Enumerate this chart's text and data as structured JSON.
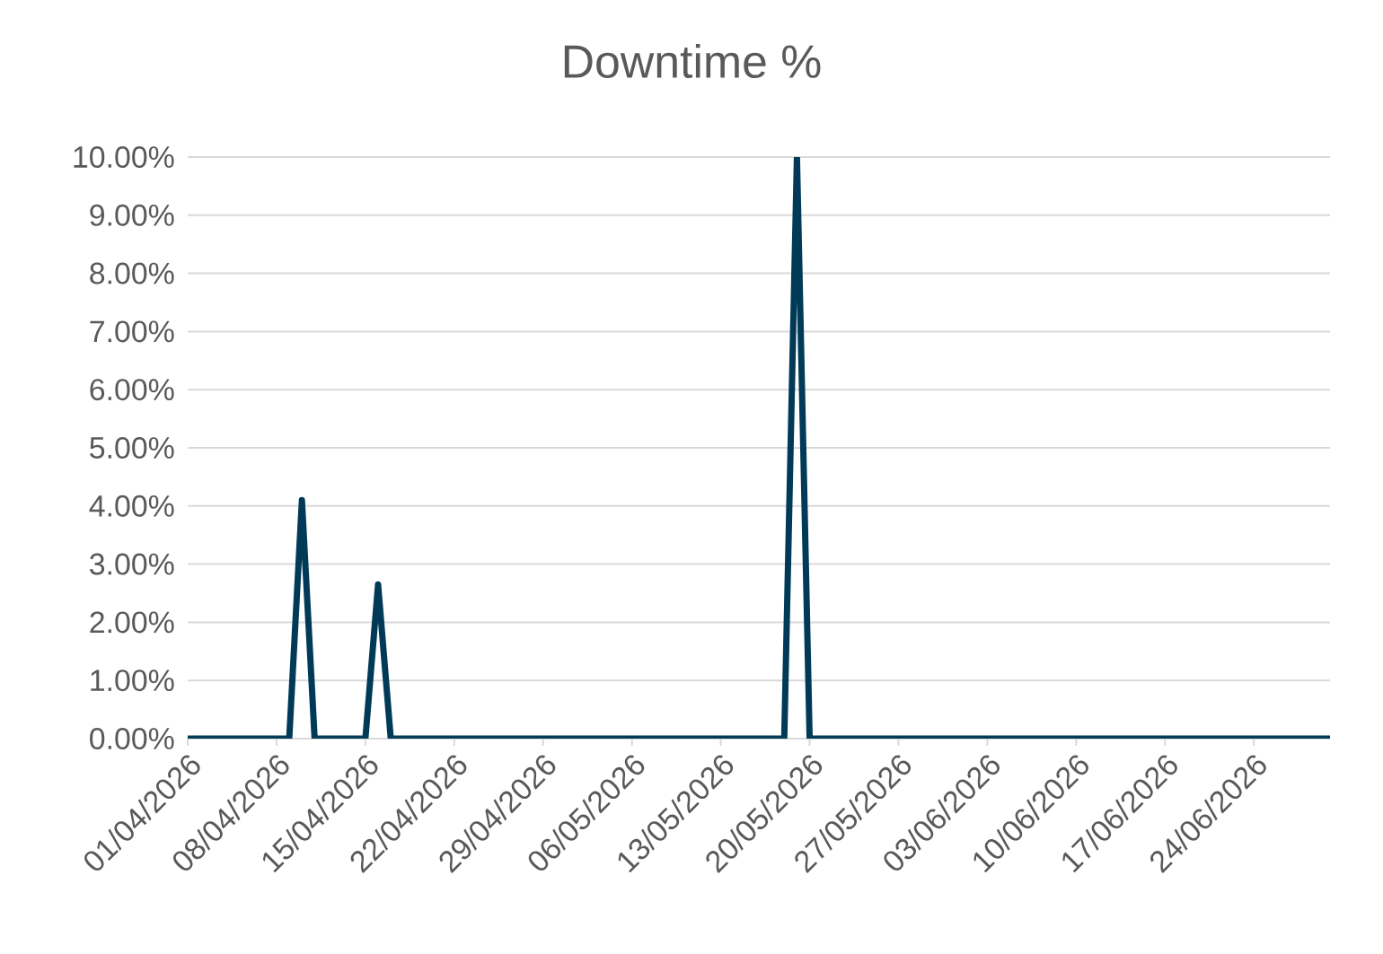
{
  "chart_data": {
    "type": "line",
    "title": "Downtime %",
    "x": [
      "2026-04-01",
      "2026-04-09",
      "2026-04-10",
      "2026-04-11",
      "2026-04-15",
      "2026-04-16",
      "2026-04-17",
      "2026-05-18",
      "2026-05-19",
      "2026-05-20",
      "2026-06-30"
    ],
    "series": [
      {
        "color": "#003a57",
        "values": [
          0,
          0,
          4.1,
          0,
          0,
          2.65,
          0,
          0,
          10,
          0,
          0
        ]
      }
    ],
    "xlim": [
      "2026-04-01",
      "2026-06-30"
    ],
    "xticks": [
      {
        "value": "2026-04-01",
        "label": "01/04/2026"
      },
      {
        "value": "2026-04-08",
        "label": "08/04/2026"
      },
      {
        "value": "2026-04-15",
        "label": "15/04/2026"
      },
      {
        "value": "2026-04-22",
        "label": "22/04/2026"
      },
      {
        "value": "2026-04-29",
        "label": "29/04/2026"
      },
      {
        "value": "2026-05-06",
        "label": "06/05/2026"
      },
      {
        "value": "2026-05-13",
        "label": "13/05/2026"
      },
      {
        "value": "2026-05-20",
        "label": "20/05/2026"
      },
      {
        "value": "2026-05-27",
        "label": "27/05/2026"
      },
      {
        "value": "2026-06-03",
        "label": "03/06/2026"
      },
      {
        "value": "2026-06-10",
        "label": "10/06/2026"
      },
      {
        "value": "2026-06-17",
        "label": "17/06/2026"
      },
      {
        "value": "2026-06-24",
        "label": "24/06/2026"
      }
    ],
    "ylim": [
      0,
      10
    ],
    "yticks": [
      {
        "value": 0,
        "label": "0.00%"
      },
      {
        "value": 1,
        "label": "1.00%"
      },
      {
        "value": 2,
        "label": "2.00%"
      },
      {
        "value": 3,
        "label": "3.00%"
      },
      {
        "value": 4,
        "label": "4.00%"
      },
      {
        "value": 5,
        "label": "5.00%"
      },
      {
        "value": 6,
        "label": "6.00%"
      },
      {
        "value": 7,
        "label": "7.00%"
      },
      {
        "value": 8,
        "label": "8.00%"
      },
      {
        "value": 9,
        "label": "9.00%"
      },
      {
        "value": 10,
        "label": "10.00%"
      }
    ],
    "grid": "y",
    "marker": "none",
    "line_style": "solid"
  }
}
